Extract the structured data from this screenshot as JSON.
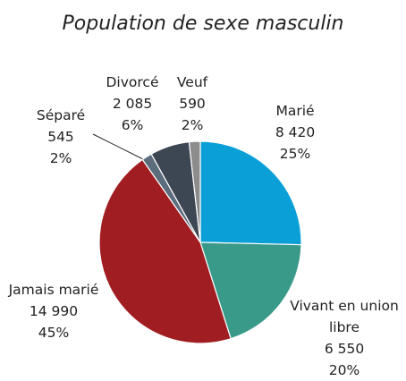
{
  "chart_data": {
    "type": "pie",
    "title": "Population de sexe masculin",
    "categories": [
      "Marié",
      "Vivant en union libre",
      "Jamais marié",
      "Séparé",
      "Divorcé",
      "Veuf"
    ],
    "values": [
      8420,
      6550,
      14990,
      545,
      2085,
      590
    ],
    "value_labels": [
      "8 420",
      "6 550",
      "14 990",
      "545",
      "2 085",
      "590"
    ],
    "percentages": [
      25,
      20,
      45,
      2,
      6,
      2
    ],
    "percentage_labels": [
      "25%",
      "20%",
      "45%",
      "2%",
      "6%",
      "2%"
    ],
    "colors": [
      "#0b9fd8",
      "#3a9a8a",
      "#a01e22",
      "#5b6c7c",
      "#3d4653",
      "#8c8c8c"
    ]
  }
}
